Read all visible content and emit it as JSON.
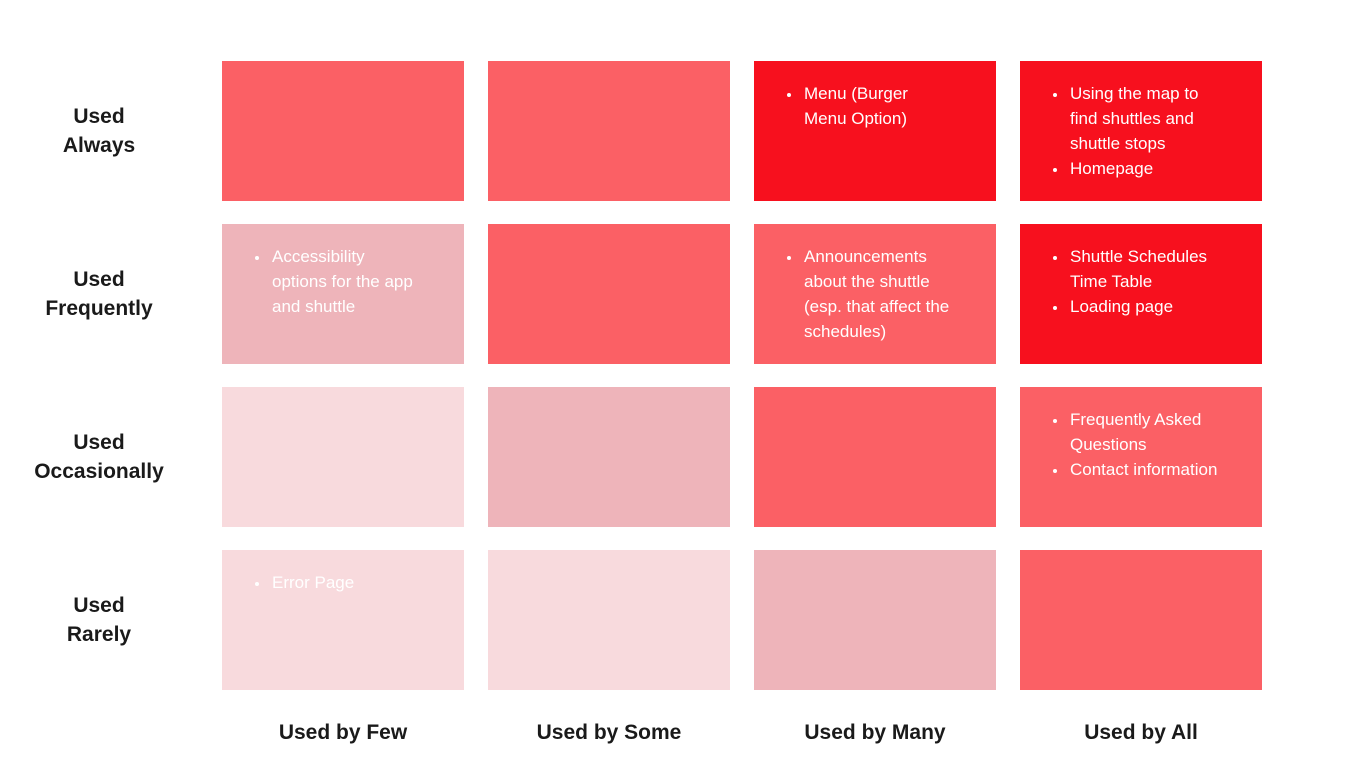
{
  "chart_data": {
    "type": "heatmap",
    "rows": [
      "Used Always",
      "Used Frequently",
      "Used Occasionally",
      "Used Rarely"
    ],
    "row_label_lines": [
      [
        "Used",
        "Always"
      ],
      [
        "Used",
        "Frequently"
      ],
      [
        "Used",
        "Occasionally"
      ],
      [
        "Used",
        "Rarely"
      ]
    ],
    "columns": [
      "Used by Few",
      "Used by Some",
      "Used by Many",
      "Used by All"
    ],
    "levels": {
      "high": "#F7101E",
      "mid": "#FB6065",
      "low": "#EEB4BA",
      "lowest": "#F8DADD"
    },
    "text_color": "#FFFFFF",
    "label_color": "#1A1A1A",
    "legend_position": "none",
    "grid": false,
    "cells": [
      [
        {
          "level": "mid",
          "items": []
        },
        {
          "level": "mid",
          "items": []
        },
        {
          "level": "high",
          "items": [
            "Menu (Burger Menu Option)"
          ]
        },
        {
          "level": "high",
          "items": [
            "Using the map to find shuttles and shuttle stops",
            "Homepage"
          ]
        }
      ],
      [
        {
          "level": "low",
          "items": [
            "Accessibility options for the app and shuttle"
          ]
        },
        {
          "level": "mid",
          "items": []
        },
        {
          "level": "mid",
          "items": [
            "Announcements about the shuttle (esp. that affect the schedules)"
          ]
        },
        {
          "level": "high",
          "items": [
            "Shuttle Schedules Time Table",
            "Loading page"
          ]
        }
      ],
      [
        {
          "level": "lowest",
          "items": []
        },
        {
          "level": "low",
          "items": []
        },
        {
          "level": "mid",
          "items": []
        },
        {
          "level": "mid",
          "items": [
            "Frequently Asked Questions",
            "Contact information"
          ]
        }
      ],
      [
        {
          "level": "lowest",
          "items": [
            "Error Page"
          ]
        },
        {
          "level": "lowest",
          "items": []
        },
        {
          "level": "low",
          "items": []
        },
        {
          "level": "mid",
          "items": []
        }
      ]
    ]
  }
}
